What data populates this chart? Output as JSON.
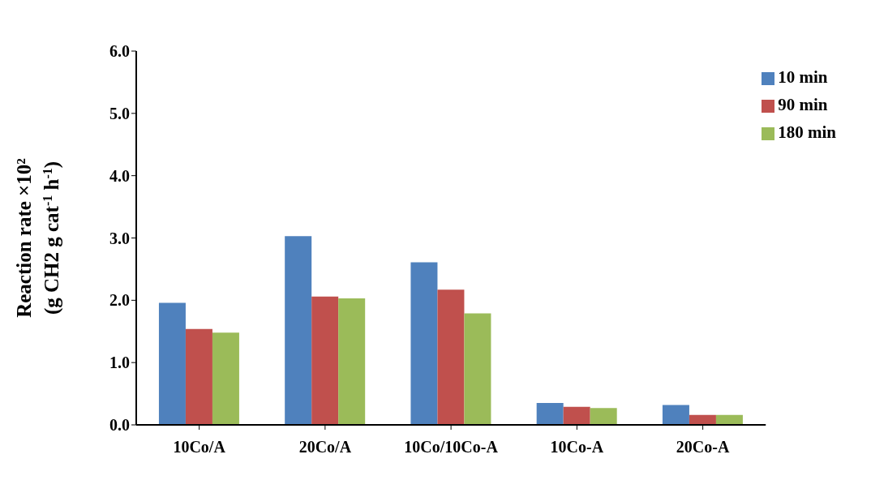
{
  "chart_data": {
    "type": "bar",
    "ylabel": "Reaction rate ×10² (g CH2 g cat$^{-1}$ h$^{-1}$)",
    "categories": [
      "10Co/A",
      "20Co/A",
      "10Co/10Co-A",
      "10Co-A",
      "20Co-A"
    ],
    "series": [
      {
        "name": "10 min",
        "color": "#4f81bd",
        "values": [
          1.96,
          3.03,
          2.61,
          0.35,
          0.32
        ]
      },
      {
        "name": "90 min",
        "color": "#c0504d",
        "values": [
          1.54,
          2.06,
          2.17,
          0.29,
          0.16
        ]
      },
      {
        "name": "180 min",
        "color": "#9bbb59",
        "values": [
          1.48,
          2.03,
          1.79,
          0.27,
          0.16
        ]
      }
    ],
    "ylim": [
      0,
      6
    ],
    "yticks": [
      {
        "value": 0,
        "label": "0.0"
      },
      {
        "value": 1,
        "label": "1.0"
      },
      {
        "value": 2,
        "label": "2.0"
      },
      {
        "value": 3,
        "label": "3.0"
      },
      {
        "value": 4,
        "label": "4.0"
      },
      {
        "value": 5,
        "label": "5.0"
      },
      {
        "value": 6,
        "label": "6.0"
      }
    ],
    "grid": false,
    "legend": "top right"
  }
}
